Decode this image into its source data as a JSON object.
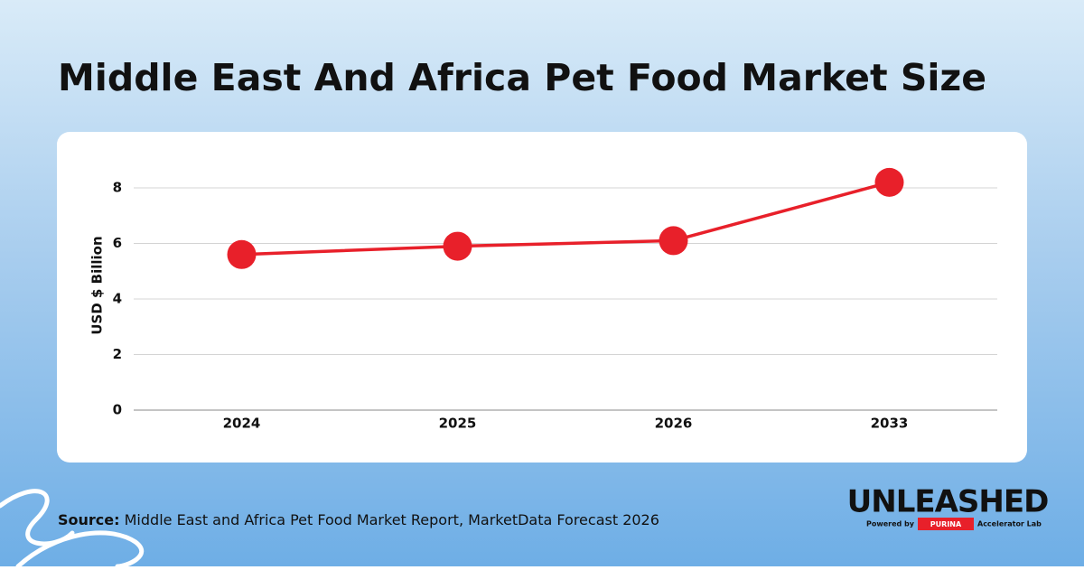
{
  "chart_data": {
    "type": "line",
    "title": "Middle East And Africa Pet Food Market Size",
    "y_label": "USD $ Billion",
    "categories": [
      "2024",
      "2025",
      "2026",
      "2033"
    ],
    "values": [
      5.6,
      5.9,
      6.1,
      8.2
    ],
    "color": "#e8202a",
    "ylim": [
      0,
      9
    ],
    "yticks": [
      0,
      2,
      4,
      6,
      8
    ],
    "grid": true
  },
  "source": {
    "label": "Source:",
    "text": "Middle East and Africa Pet Food Market Report, MarketData Forecast 2026"
  },
  "logo": {
    "name": "UNLEASHED",
    "powered": "Powered by",
    "brand": "PURINA",
    "lab": "Accelerator Lab"
  }
}
